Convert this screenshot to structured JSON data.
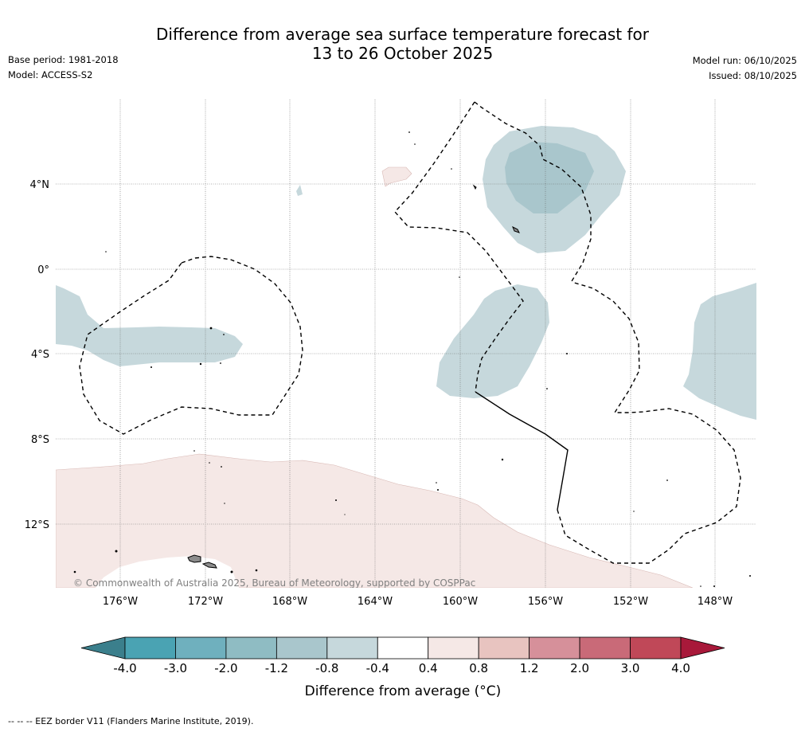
{
  "title": {
    "line1": "Difference from average sea surface temperature forecast for",
    "line2": "13 to 26 October 2025"
  },
  "meta": {
    "base_period": "Base period: 1981-2018",
    "model": "Model: ACCESS-S2",
    "model_run": "Model run: 06/10/2025",
    "issued": "Issued: 08/10/2025"
  },
  "map": {
    "lat_labels": [
      "4°N",
      "0°",
      "4°S",
      "8°S",
      "12°S"
    ],
    "lon_labels": [
      "176°W",
      "172°W",
      "168°W",
      "164°W",
      "160°W",
      "156°W",
      "152°W",
      "148°W"
    ],
    "copyright": "© Commonwealth of Australia 2025, Bureau of Meteorology, supported by COSPPac",
    "colors": {
      "cool_light": "#c6d8dc",
      "cool_mid": "#a9c6cc",
      "warm_light": "#f5e8e6",
      "land": "#8c8c8c",
      "eez_line": "#000000"
    }
  },
  "colorbar": {
    "title": "Difference from average (°C)",
    "tick_labels": [
      "-4.0",
      "-3.0",
      "-2.0",
      "-1.2",
      "-0.8",
      "-0.4",
      "0.4",
      "0.8",
      "1.2",
      "2.0",
      "3.0",
      "4.0"
    ],
    "colors": [
      "#3b7f8c",
      "#4aa3b3",
      "#6fb0be",
      "#8fbcc3",
      "#a9c6cc",
      "#c6d8dc",
      "#ffffff",
      "#f5e8e6",
      "#e8c4c0",
      "#d6909a",
      "#c96a78",
      "#c04858",
      "#a8193a"
    ]
  },
  "footnote": "-- -- -- EEZ border V11 (Flanders Marine Institute, 2019)."
}
